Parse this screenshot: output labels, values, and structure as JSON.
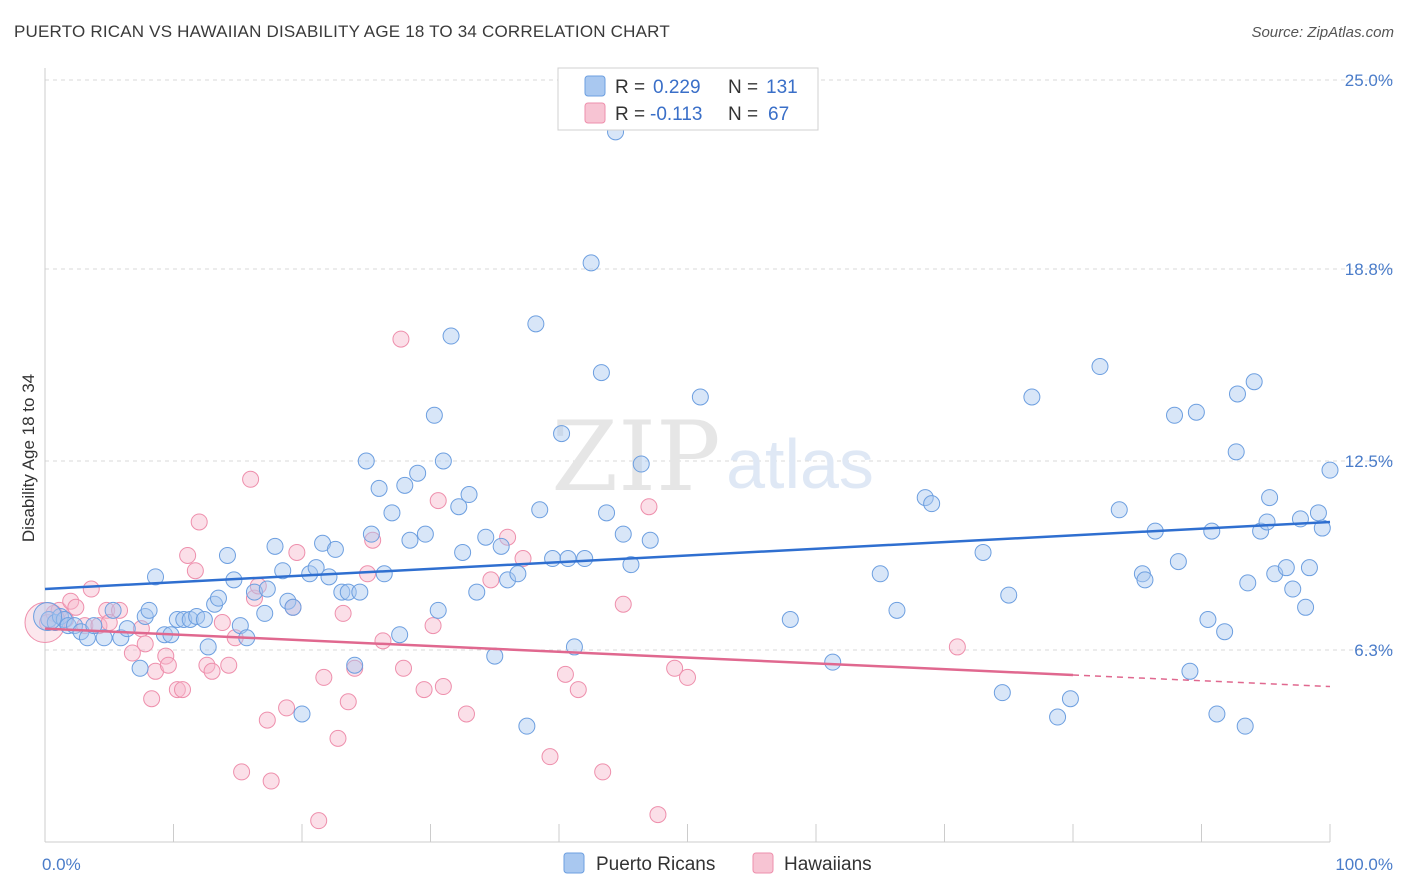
{
  "title": "PUERTO RICAN VS HAWAIIAN DISABILITY AGE 18 TO 34 CORRELATION CHART",
  "source": "Source: ZipAtlas.com",
  "watermark": {
    "zip": "ZIP",
    "atlas": "atlas"
  },
  "legend_top": [
    {
      "r_label": "R =",
      "r_value": "0.229",
      "n_label": "N =",
      "n_value": "131"
    },
    {
      "r_label": "R =",
      "r_value": "-0.113",
      "n_label": "N =",
      "n_value": "67"
    }
  ],
  "colors": {
    "blue_fill": "#a9c8f0",
    "blue_stroke": "#6d9fe0",
    "blue_line": "#2f6fd0",
    "pink_fill": "#f7b9cc",
    "pink_stroke": "#ee8fac",
    "pink_line": "#e0688f",
    "grid": "#d9d9d9",
    "tick_text": "#4a7cc9"
  },
  "chart_data": {
    "type": "scatter",
    "title": "PUERTO RICAN VS HAWAIIAN DISABILITY AGE 18 TO 34 CORRELATION CHART",
    "xlabel": "",
    "ylabel": "Disability Age 18 to 34",
    "xlim": [
      0,
      100
    ],
    "ylim": [
      0,
      25
    ],
    "x_tick_labels": [
      "0.0%",
      "100.0%"
    ],
    "y_ticks": [
      6.3,
      12.5,
      18.8,
      25.0
    ],
    "y_tick_labels": [
      "6.3%",
      "12.5%",
      "18.8%",
      "25.0%"
    ],
    "grid": true,
    "legend_position": "bottom",
    "series": [
      {
        "name": "Puerto Ricans",
        "r": 0.229,
        "n": 131,
        "trend": {
          "x0": 0,
          "y0": 8.3,
          "x1": 100,
          "y1": 10.5,
          "dashed_from": null
        },
        "points": [
          [
            0.3,
            7.3
          ],
          [
            0.8,
            7.2
          ],
          [
            1.2,
            7.4
          ],
          [
            1.5,
            7.3
          ],
          [
            1.8,
            7.1
          ],
          [
            2.3,
            7.1
          ],
          [
            2.8,
            6.9
          ],
          [
            3.3,
            6.7
          ],
          [
            3.8,
            7.1
          ],
          [
            4.6,
            6.7
          ],
          [
            5.3,
            7.6
          ],
          [
            5.9,
            6.7
          ],
          [
            6.4,
            7.0
          ],
          [
            7.4,
            5.7
          ],
          [
            7.8,
            7.4
          ],
          [
            8.1,
            7.6
          ],
          [
            8.6,
            8.7
          ],
          [
            9.3,
            6.8
          ],
          [
            9.8,
            6.8
          ],
          [
            10.3,
            7.3
          ],
          [
            10.8,
            7.3
          ],
          [
            11.3,
            7.3
          ],
          [
            11.8,
            7.4
          ],
          [
            12.4,
            7.3
          ],
          [
            12.7,
            6.4
          ],
          [
            13.2,
            7.8
          ],
          [
            13.5,
            8.0
          ],
          [
            14.2,
            9.4
          ],
          [
            14.7,
            8.6
          ],
          [
            15.2,
            7.1
          ],
          [
            15.7,
            6.7
          ],
          [
            16.3,
            8.2
          ],
          [
            17.1,
            7.5
          ],
          [
            17.3,
            8.3
          ],
          [
            17.9,
            9.7
          ],
          [
            18.5,
            8.9
          ],
          [
            18.9,
            7.9
          ],
          [
            19.3,
            7.7
          ],
          [
            20.0,
            4.2
          ],
          [
            20.6,
            8.8
          ],
          [
            21.1,
            9.0
          ],
          [
            21.6,
            9.8
          ],
          [
            22.1,
            8.7
          ],
          [
            22.6,
            9.6
          ],
          [
            23.1,
            8.2
          ],
          [
            23.6,
            8.2
          ],
          [
            24.1,
            5.8
          ],
          [
            24.5,
            8.2
          ],
          [
            25.0,
            12.5
          ],
          [
            25.4,
            10.1
          ],
          [
            26.0,
            11.6
          ],
          [
            26.4,
            8.8
          ],
          [
            27.0,
            10.8
          ],
          [
            27.6,
            6.8
          ],
          [
            28.0,
            11.7
          ],
          [
            28.4,
            9.9
          ],
          [
            29.0,
            12.1
          ],
          [
            29.6,
            10.1
          ],
          [
            30.3,
            14.0
          ],
          [
            30.6,
            7.6
          ],
          [
            31.0,
            12.5
          ],
          [
            31.6,
            16.6
          ],
          [
            32.2,
            11.0
          ],
          [
            32.5,
            9.5
          ],
          [
            33.0,
            11.4
          ],
          [
            33.6,
            8.2
          ],
          [
            34.3,
            10.0
          ],
          [
            35.0,
            6.1
          ],
          [
            35.5,
            9.7
          ],
          [
            36.0,
            8.6
          ],
          [
            36.8,
            8.8
          ],
          [
            37.5,
            3.8
          ],
          [
            38.2,
            17.0
          ],
          [
            38.5,
            10.9
          ],
          [
            39.5,
            9.3
          ],
          [
            40.2,
            13.4
          ],
          [
            40.7,
            9.3
          ],
          [
            41.2,
            6.4
          ],
          [
            42.0,
            9.3
          ],
          [
            42.5,
            19.0
          ],
          [
            43.3,
            15.4
          ],
          [
            43.7,
            10.8
          ],
          [
            44.4,
            23.3
          ],
          [
            45.0,
            10.1
          ],
          [
            45.6,
            9.1
          ],
          [
            46.4,
            12.4
          ],
          [
            47.1,
            9.9
          ],
          [
            51.0,
            14.6
          ],
          [
            58.0,
            7.3
          ],
          [
            61.3,
            5.9
          ],
          [
            65.0,
            8.8
          ],
          [
            66.3,
            7.6
          ],
          [
            68.5,
            11.3
          ],
          [
            69.0,
            11.1
          ],
          [
            73.0,
            9.5
          ],
          [
            74.5,
            4.9
          ],
          [
            75.0,
            8.1
          ],
          [
            76.8,
            14.6
          ],
          [
            78.8,
            4.1
          ],
          [
            79.8,
            4.7
          ],
          [
            82.1,
            15.6
          ],
          [
            83.6,
            10.9
          ],
          [
            85.4,
            8.8
          ],
          [
            85.6,
            8.6
          ],
          [
            86.4,
            10.2
          ],
          [
            87.9,
            14.0
          ],
          [
            88.2,
            9.2
          ],
          [
            89.1,
            5.6
          ],
          [
            89.6,
            14.1
          ],
          [
            90.5,
            7.3
          ],
          [
            90.8,
            10.2
          ],
          [
            91.2,
            4.2
          ],
          [
            91.8,
            6.9
          ],
          [
            92.7,
            12.8
          ],
          [
            92.8,
            14.7
          ],
          [
            93.4,
            3.8
          ],
          [
            93.6,
            8.5
          ],
          [
            94.1,
            15.1
          ],
          [
            94.6,
            10.2
          ],
          [
            95.1,
            10.5
          ],
          [
            95.3,
            11.3
          ],
          [
            95.7,
            8.8
          ],
          [
            96.6,
            9.0
          ],
          [
            97.1,
            8.3
          ],
          [
            97.7,
            10.6
          ],
          [
            98.1,
            7.7
          ],
          [
            98.4,
            9.0
          ],
          [
            99.1,
            10.8
          ],
          [
            99.4,
            10.3
          ],
          [
            100.0,
            12.2
          ]
        ]
      },
      {
        "name": "Hawaiians",
        "r": -0.113,
        "n": 67,
        "trend": {
          "x0": 0,
          "y0": 7.0,
          "x1": 100,
          "y1": 5.1,
          "dashed_from": 80
        },
        "points": [
          [
            0.2,
            7.2
          ],
          [
            0.7,
            7.5
          ],
          [
            1.1,
            7.6
          ],
          [
            1.6,
            7.3
          ],
          [
            2.0,
            7.9
          ],
          [
            2.4,
            7.7
          ],
          [
            3.1,
            7.1
          ],
          [
            3.6,
            8.3
          ],
          [
            4.2,
            7.1
          ],
          [
            4.8,
            7.6
          ],
          [
            5.0,
            7.2
          ],
          [
            5.8,
            7.6
          ],
          [
            6.8,
            6.2
          ],
          [
            7.5,
            7.0
          ],
          [
            7.8,
            6.5
          ],
          [
            8.3,
            4.7
          ],
          [
            8.6,
            5.6
          ],
          [
            9.4,
            6.1
          ],
          [
            9.6,
            5.8
          ],
          [
            10.3,
            5.0
          ],
          [
            10.7,
            5.0
          ],
          [
            11.1,
            9.4
          ],
          [
            11.7,
            8.9
          ],
          [
            12.0,
            10.5
          ],
          [
            12.6,
            5.8
          ],
          [
            13.0,
            5.6
          ],
          [
            13.8,
            7.2
          ],
          [
            14.3,
            5.8
          ],
          [
            14.8,
            6.7
          ],
          [
            15.3,
            2.3
          ],
          [
            16.0,
            11.9
          ],
          [
            16.3,
            8.0
          ],
          [
            16.6,
            8.4
          ],
          [
            17.3,
            4.0
          ],
          [
            17.6,
            2.0
          ],
          [
            18.8,
            4.4
          ],
          [
            19.3,
            7.7
          ],
          [
            19.6,
            9.5
          ],
          [
            21.3,
            0.7
          ],
          [
            21.7,
            5.4
          ],
          [
            22.8,
            3.4
          ],
          [
            23.2,
            7.5
          ],
          [
            23.6,
            4.6
          ],
          [
            24.1,
            5.7
          ],
          [
            25.1,
            8.8
          ],
          [
            25.5,
            9.9
          ],
          [
            26.3,
            6.6
          ],
          [
            27.7,
            16.5
          ],
          [
            27.9,
            5.7
          ],
          [
            29.5,
            5.0
          ],
          [
            30.2,
            7.1
          ],
          [
            30.6,
            11.2
          ],
          [
            31.0,
            5.1
          ],
          [
            32.8,
            4.2
          ],
          [
            34.7,
            8.6
          ],
          [
            36.0,
            10.0
          ],
          [
            37.2,
            9.3
          ],
          [
            39.3,
            2.8
          ],
          [
            40.5,
            5.5
          ],
          [
            41.5,
            5.0
          ],
          [
            43.4,
            2.3
          ],
          [
            45.0,
            7.8
          ],
          [
            47.0,
            11.0
          ],
          [
            47.7,
            0.9
          ],
          [
            49.0,
            5.7
          ],
          [
            50.0,
            5.4
          ],
          [
            71.0,
            6.4
          ]
        ]
      }
    ]
  }
}
